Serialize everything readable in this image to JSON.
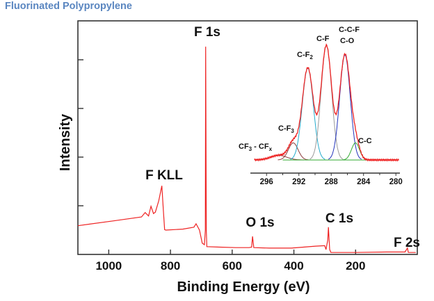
{
  "header": {
    "title": "Fluorinated Polypropylene"
  },
  "chart_data": [
    {
      "type": "line",
      "title": "",
      "xlabel": "Binding Energy (eV)",
      "ylabel": "Intensity",
      "xlim": [
        1100,
        0
      ],
      "x_reversed": true,
      "ylim": [
        0,
        4.8
      ],
      "xticks": [
        1000,
        800,
        600,
        400,
        200
      ],
      "yticks_unlabeled": [
        1,
        2,
        3,
        4
      ],
      "grid": false,
      "series": [
        {
          "color": "#ee2222",
          "x": [
            1100,
            984,
            894,
            882,
            871,
            863,
            855,
            849,
            838,
            828,
            823,
            819,
            815,
            760,
            724,
            717,
            706,
            697,
            690,
            687,
            686,
            684,
            682,
            640,
            589,
            545,
            537,
            534,
            530,
            480,
            408,
            330,
            300,
            296,
            290,
            288,
            284,
            280,
            200,
            100,
            40,
            32,
            29,
            25,
            5
          ],
          "y": [
            0.59,
            0.69,
            0.77,
            0.86,
            0.79,
            0.99,
            0.84,
            0.87,
            1.1,
            1.41,
            0.9,
            0.51,
            0.5,
            0.52,
            0.56,
            0.63,
            0.5,
            0.23,
            0.2,
            0.5,
            4.27,
            0.5,
            0.16,
            0.15,
            0.14,
            0.14,
            0.15,
            0.37,
            0.14,
            0.13,
            0.13,
            0.17,
            0.18,
            0.1,
            0.3,
            0.56,
            0.1,
            0.04,
            0.04,
            0.05,
            0.05,
            0.13,
            0.04,
            0.04,
            0.04
          ]
        }
      ],
      "annotations": [
        {
          "text": "F 1s",
          "x": 686
        },
        {
          "text": "F KLL",
          "x": 832
        },
        {
          "text": "O 1s",
          "x": 532
        },
        {
          "text": "C 1s",
          "x": 285
        },
        {
          "text": "F 2s",
          "x": 30
        }
      ]
    },
    {
      "type": "line",
      "title": "",
      "xlabel": "",
      "ylabel": "",
      "xlim": [
        298,
        279.5
      ],
      "x_reversed": true,
      "ylim": [
        0,
        1
      ],
      "xticks": [
        296,
        292,
        288,
        284,
        280
      ],
      "baseline": 0.1,
      "envelope_color": "#ee2222",
      "baseline_color": "#33aa33",
      "components": [
        {
          "label": "CF3 - CFx",
          "center": 294.5,
          "amplitude": 0.035,
          "sigma": 1.0,
          "color": "#8b3a3a"
        },
        {
          "label": "C-F3",
          "center": 292.7,
          "amplitude": 0.13,
          "sigma": 0.6,
          "color": "#8b3a3a"
        },
        {
          "label": "C-F2",
          "center": 290.9,
          "amplitude": 0.7,
          "sigma": 0.68,
          "color": "#22aacc"
        },
        {
          "label": "C-F",
          "center": 288.6,
          "amplitude": 0.87,
          "sigma": 0.65,
          "color": "#999999"
        },
        {
          "label": "C-C-F C-O",
          "center": 286.3,
          "amplitude": 0.8,
          "sigma": 0.65,
          "color": "#2233bb"
        },
        {
          "label": "C-C",
          "center": 285.0,
          "amplitude": 0.13,
          "sigma": 0.5,
          "color": "#33aa33"
        }
      ],
      "labels": {
        "cf3_cfx": {
          "a": "CF",
          "a_sub": "3",
          "b": " - CF",
          "b_sub": "x"
        },
        "cf3": {
          "a": "C-F",
          "a_sub": "3"
        },
        "cf2": {
          "a": "C-F",
          "a_sub": "2"
        },
        "cf": "C-F",
        "ccf": "C-C-F",
        "co": "C-O",
        "cc": "C-C"
      }
    }
  ]
}
